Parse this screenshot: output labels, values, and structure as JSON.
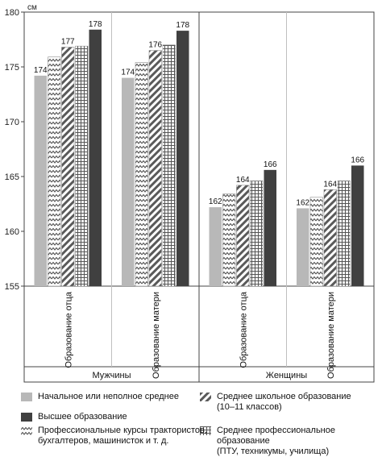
{
  "chart_data": {
    "type": "bar",
    "unit_label": "см",
    "ylim": [
      155,
      180
    ],
    "yticks": [
      155,
      160,
      165,
      170,
      175,
      180
    ],
    "groups": [
      {
        "label": "Мужчины",
        "categories": [
          "Образование отца",
          "Образование матери"
        ]
      },
      {
        "label": "Женщины",
        "categories": [
          "Образование отца",
          "Образование матери"
        ]
      }
    ],
    "series": [
      {
        "name": "Начальное или неполное среднее",
        "pattern": "solid-light",
        "values": [
          174.2,
          174.0,
          162.2,
          162.1
        ]
      },
      {
        "name": "Профессиональные курсы трактористов, бухгалтеров, машинисток и т. д.",
        "pattern": "zigzag",
        "values": [
          175.9,
          175.4,
          163.4,
          163.1
        ]
      },
      {
        "name": "Среднее школьное образование (10–11 классов)",
        "pattern": "diagonal",
        "values": [
          176.8,
          176.5,
          164.2,
          163.8
        ]
      },
      {
        "name": "Среднее профессиональное образование (ПТУ, техникумы, училища)",
        "pattern": "grid",
        "values": [
          176.9,
          177.0,
          164.6,
          164.6
        ]
      },
      {
        "name": "Высшее образование",
        "pattern": "solid-dark",
        "values": [
          178.4,
          178.3,
          165.6,
          166.0
        ]
      }
    ],
    "data_labels": [
      {
        "series": 0,
        "index": 0,
        "text": "174"
      },
      {
        "series": 2,
        "index": 0,
        "text": "177"
      },
      {
        "series": 4,
        "index": 0,
        "text": "178"
      },
      {
        "series": 0,
        "index": 1,
        "text": "174"
      },
      {
        "series": 2,
        "index": 1,
        "text": "176"
      },
      {
        "series": 4,
        "index": 1,
        "text": "178"
      },
      {
        "series": 0,
        "index": 2,
        "text": "162"
      },
      {
        "series": 2,
        "index": 2,
        "text": "164"
      },
      {
        "series": 4,
        "index": 2,
        "text": "166"
      },
      {
        "series": 0,
        "index": 3,
        "text": "162"
      },
      {
        "series": 2,
        "index": 3,
        "text": "164"
      },
      {
        "series": 4,
        "index": 3,
        "text": "166"
      }
    ],
    "colors": {
      "light": "#b8b8b8",
      "dark": "#404040",
      "pattern_ink": "#555555",
      "grid": "#bfbfbf"
    },
    "grid": false
  },
  "legend": {
    "items": [
      {
        "label": "Начальное или неполное среднее",
        "pattern": "solid-light"
      },
      {
        "label": "Среднее школьное образование\n(10–11 классов)",
        "pattern": "diagonal"
      },
      {
        "label": "Высшее образование",
        "pattern": "solid-dark"
      },
      {
        "label": "Среднее профессиональное образование\n(ПТУ, техникумы, училища)",
        "pattern": "grid"
      },
      {
        "label": "Профессиональные курсы трактористов,\nбухгалтеров, машинисток и т. д.",
        "pattern": "zigzag"
      }
    ]
  }
}
